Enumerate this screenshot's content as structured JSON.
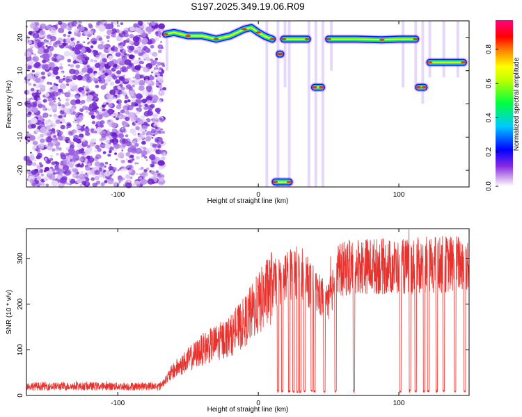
{
  "title": "S197.2025.349.19.06.R09",
  "colors": {
    "snr_line": "#e8322e",
    "noise_speckle": "#8a2be2",
    "background": "#ffffff"
  },
  "chart_data": [
    {
      "type": "heatmap",
      "name": "spectrogram",
      "xlabel": "Height of straight line (km)",
      "ylabel": "Frequency (Hz)",
      "xlim": [
        -165,
        150
      ],
      "ylim": [
        -25,
        25
      ],
      "xticks": [
        -100,
        0,
        100
      ],
      "yticks": [
        -20,
        -10,
        0,
        10,
        20
      ],
      "colorbar": {
        "label": "Normalized spectral amplitude",
        "range": [
          0,
          0.97
        ],
        "ticks": [
          0.0,
          0.2,
          0.4,
          0.6,
          0.8
        ],
        "colormap": "rainbow (violet-blue-cyan-green-yellow-red-magenta)"
      },
      "noise_region_km": [
        -165,
        -65
      ],
      "tracks": [
        {
          "name": "main-carrier-a",
          "points": [
            [
              -66,
              21
            ],
            [
              -60,
              21.5
            ],
            [
              -50,
              20.5
            ],
            [
              -40,
              20.5
            ],
            [
              -30,
              19.5
            ],
            [
              -20,
              20.5
            ],
            [
              -10,
              22.5
            ],
            [
              -5,
              23
            ],
            [
              0,
              21.5
            ],
            [
              5,
              20.3
            ],
            [
              10,
              19.5
            ]
          ]
        },
        {
          "name": "main-carrier-b",
          "points": [
            [
              18,
              19.5
            ],
            [
              24,
              19.5
            ],
            [
              35,
              19.5
            ]
          ]
        },
        {
          "name": "main-carrier-c",
          "points": [
            [
              50,
              19.5
            ],
            [
              70,
              19.5
            ],
            [
              88,
              19.3
            ],
            [
              100,
              19.5
            ],
            [
              112,
              19.5
            ]
          ]
        },
        {
          "name": "low-tone-a",
          "points": [
            [
              15,
              15
            ],
            [
              16,
              15
            ]
          ]
        },
        {
          "name": "side-tone-a",
          "points": [
            [
              40,
              5
            ],
            [
              45,
              5
            ]
          ]
        },
        {
          "name": "side-tone-b",
          "points": [
            [
              114,
              5
            ],
            [
              118,
              5
            ]
          ]
        },
        {
          "name": "shifted-carrier",
          "points": [
            [
              122,
              12.5
            ],
            [
              135,
              12.5
            ],
            [
              146,
              12.5
            ]
          ]
        },
        {
          "name": "bottom-tone",
          "points": [
            [
              12,
              -23.5
            ],
            [
              22,
              -23.5
            ]
          ]
        }
      ]
    },
    {
      "type": "line",
      "name": "snr",
      "xlabel": "Height of straight line (km)",
      "ylabel": "SNR (10 * v/v)",
      "xlim": [
        -165,
        150
      ],
      "ylim": [
        0,
        365
      ],
      "xticks": [
        -100,
        0,
        100
      ],
      "yticks": [
        0,
        100,
        200,
        300
      ],
      "trend": [
        [
          -165,
          20
        ],
        [
          -70,
          20
        ],
        [
          -60,
          55
        ],
        [
          -40,
          100
        ],
        [
          -20,
          130
        ],
        [
          -10,
          160
        ],
        [
          0,
          200
        ],
        [
          10,
          240
        ],
        [
          20,
          265
        ],
        [
          30,
          270
        ],
        [
          40,
          230
        ],
        [
          50,
          200
        ],
        [
          55,
          270
        ],
        [
          70,
          285
        ],
        [
          100,
          280
        ],
        [
          120,
          285
        ],
        [
          150,
          290
        ]
      ],
      "dropouts_to_zero_km": [
        14,
        17,
        22,
        25,
        28,
        30,
        33,
        38,
        40,
        47,
        55,
        68,
        101,
        108,
        112,
        118,
        121,
        127,
        132,
        140,
        147
      ]
    }
  ]
}
